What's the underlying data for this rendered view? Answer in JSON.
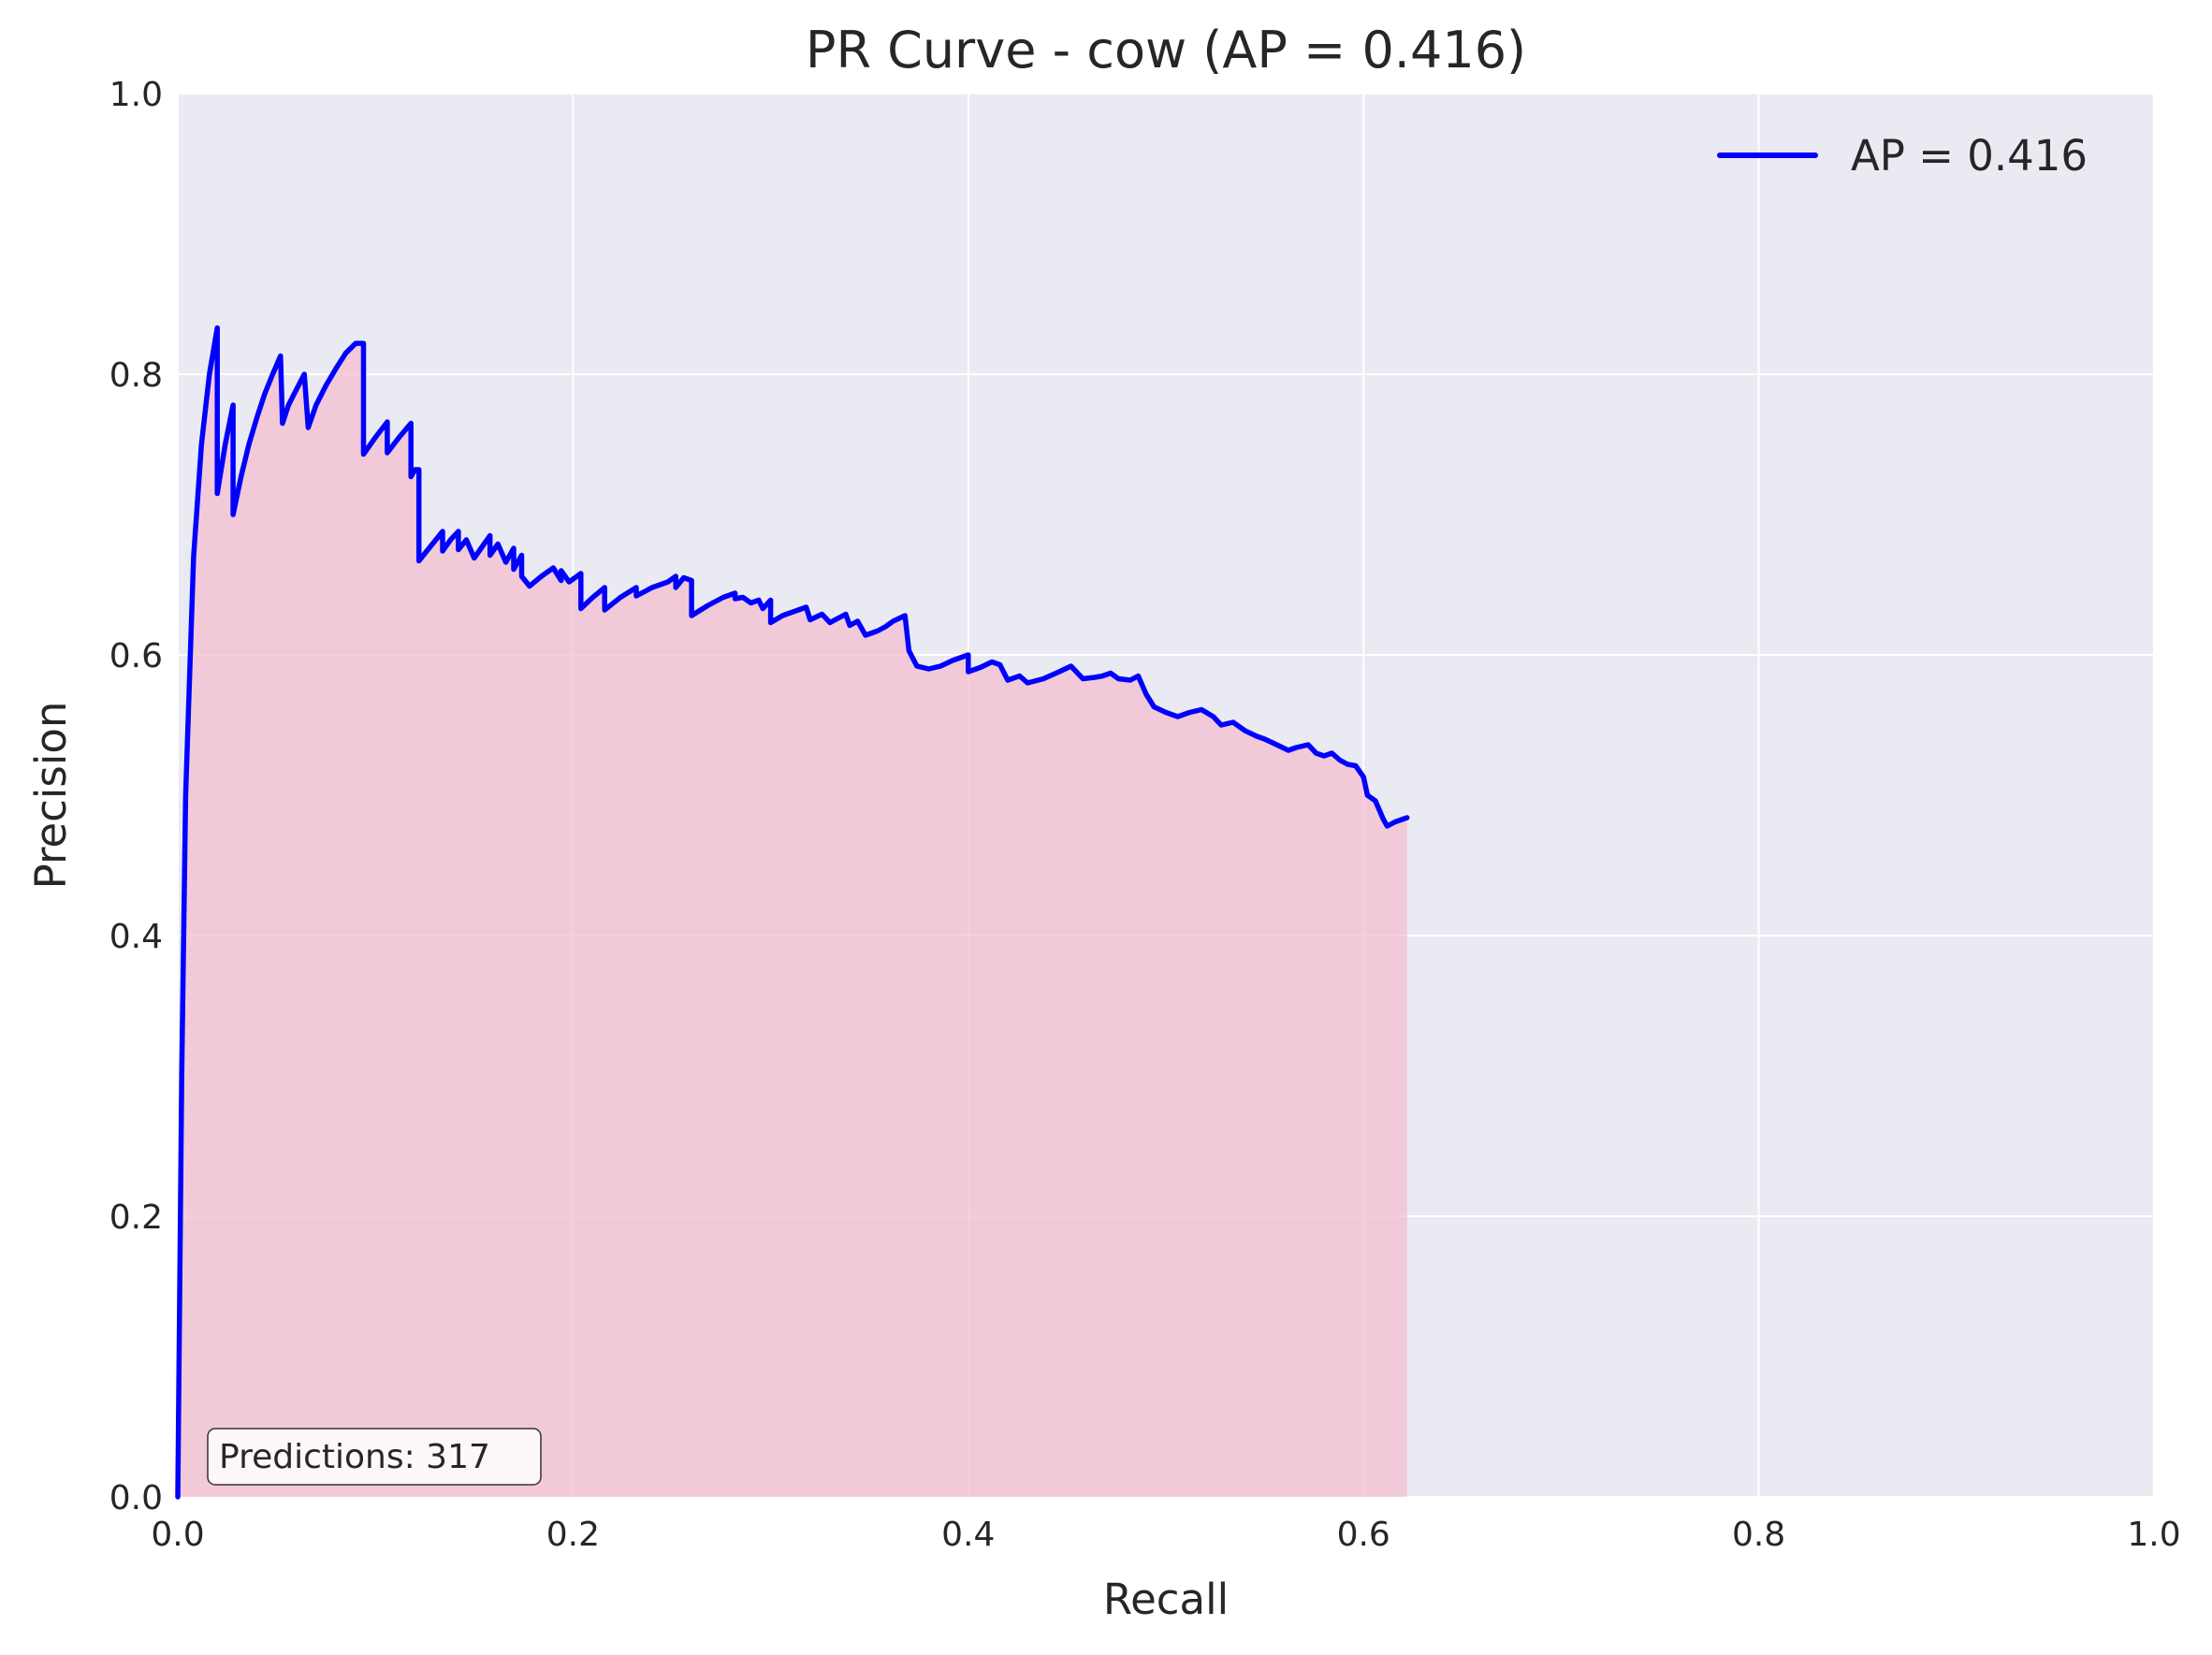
{
  "chart_data": {
    "type": "line",
    "title": "PR Curve - cow (AP = 0.416)",
    "xlabel": "Recall",
    "ylabel": "Precision",
    "xlim": [
      0.0,
      1.0
    ],
    "ylim": [
      0.0,
      1.0
    ],
    "xticks": [
      "0.0",
      "0.2",
      "0.4",
      "0.6",
      "0.8",
      "1.0"
    ],
    "yticks": [
      "0.0",
      "0.2",
      "0.4",
      "0.6",
      "0.8",
      "1.0"
    ],
    "grid": true,
    "legend_position": "top-right",
    "series": [
      {
        "name": "AP = 0.416",
        "color": "#0000ff",
        "fill_color": "#f4bdd0",
        "x": [
          0.0,
          0.002,
          0.004,
          0.008,
          0.012,
          0.016,
          0.02,
          0.02,
          0.024,
          0.028,
          0.028,
          0.032,
          0.036,
          0.04,
          0.044,
          0.048,
          0.052,
          0.053,
          0.056,
          0.06,
          0.064,
          0.066,
          0.07,
          0.075,
          0.08,
          0.085,
          0.09,
          0.094,
          0.094,
          0.1,
          0.106,
          0.106,
          0.112,
          0.118,
          0.118,
          0.12,
          0.122,
          0.122,
          0.126,
          0.13,
          0.134,
          0.134,
          0.138,
          0.142,
          0.142,
          0.146,
          0.15,
          0.154,
          0.158,
          0.158,
          0.162,
          0.166,
          0.17,
          0.17,
          0.174,
          0.174,
          0.178,
          0.184,
          0.19,
          0.194,
          0.194,
          0.198,
          0.204,
          0.204,
          0.21,
          0.216,
          0.216,
          0.224,
          0.232,
          0.232,
          0.24,
          0.248,
          0.252,
          0.252,
          0.256,
          0.26,
          0.26,
          0.268,
          0.276,
          0.282,
          0.282,
          0.286,
          0.29,
          0.294,
          0.296,
          0.3,
          0.3,
          0.306,
          0.312,
          0.318,
          0.32,
          0.326,
          0.33,
          0.334,
          0.338,
          0.34,
          0.344,
          0.348,
          0.354,
          0.358,
          0.362,
          0.368,
          0.37,
          0.374,
          0.38,
          0.386,
          0.392,
          0.4,
          0.4,
          0.406,
          0.412,
          0.416,
          0.42,
          0.426,
          0.43,
          0.438,
          0.446,
          0.452,
          0.458,
          0.464,
          0.468,
          0.472,
          0.476,
          0.482,
          0.486,
          0.49,
          0.494,
          0.5,
          0.506,
          0.512,
          0.518,
          0.524,
          0.528,
          0.534,
          0.54,
          0.546,
          0.55,
          0.556,
          0.562,
          0.566,
          0.572,
          0.576,
          0.58,
          0.584,
          0.588,
          0.592,
          0.596,
          0.6,
          0.602,
          0.606,
          0.61,
          0.612,
          0.616,
          0.622
        ],
        "y": [
          0.0,
          0.3,
          0.5,
          0.67,
          0.75,
          0.8,
          0.833,
          0.715,
          0.75,
          0.778,
          0.7,
          0.727,
          0.75,
          0.769,
          0.786,
          0.8,
          0.813,
          0.765,
          0.778,
          0.789,
          0.8,
          0.762,
          0.778,
          0.792,
          0.804,
          0.815,
          0.822,
          0.822,
          0.743,
          0.755,
          0.766,
          0.744,
          0.755,
          0.765,
          0.727,
          0.732,
          0.732,
          0.667,
          0.674,
          0.681,
          0.688,
          0.674,
          0.682,
          0.688,
          0.675,
          0.682,
          0.669,
          0.677,
          0.685,
          0.671,
          0.679,
          0.666,
          0.676,
          0.661,
          0.671,
          0.656,
          0.649,
          0.656,
          0.662,
          0.653,
          0.66,
          0.652,
          0.658,
          0.633,
          0.641,
          0.648,
          0.632,
          0.641,
          0.648,
          0.642,
          0.648,
          0.652,
          0.656,
          0.648,
          0.655,
          0.653,
          0.628,
          0.635,
          0.641,
          0.644,
          0.64,
          0.641,
          0.637,
          0.639,
          0.633,
          0.639,
          0.623,
          0.628,
          0.631,
          0.634,
          0.625,
          0.629,
          0.623,
          0.626,
          0.629,
          0.621,
          0.624,
          0.614,
          0.617,
          0.62,
          0.624,
          0.628,
          0.603,
          0.592,
          0.59,
          0.592,
          0.596,
          0.6,
          0.588,
          0.591,
          0.595,
          0.593,
          0.582,
          0.585,
          0.58,
          0.583,
          0.588,
          0.592,
          0.583,
          0.584,
          0.585,
          0.587,
          0.583,
          0.582,
          0.585,
          0.572,
          0.563,
          0.559,
          0.556,
          0.559,
          0.561,
          0.556,
          0.55,
          0.552,
          0.546,
          0.542,
          0.54,
          0.536,
          0.532,
          0.534,
          0.536,
          0.53,
          0.528,
          0.53,
          0.525,
          0.522,
          0.521,
          0.513,
          0.5,
          0.496,
          0.483,
          0.478,
          0.481,
          0.484
        ]
      }
    ],
    "legend": [
      {
        "label": "AP = 0.416",
        "color": "#0000ff"
      }
    ],
    "annotation": "Predictions: 317"
  }
}
